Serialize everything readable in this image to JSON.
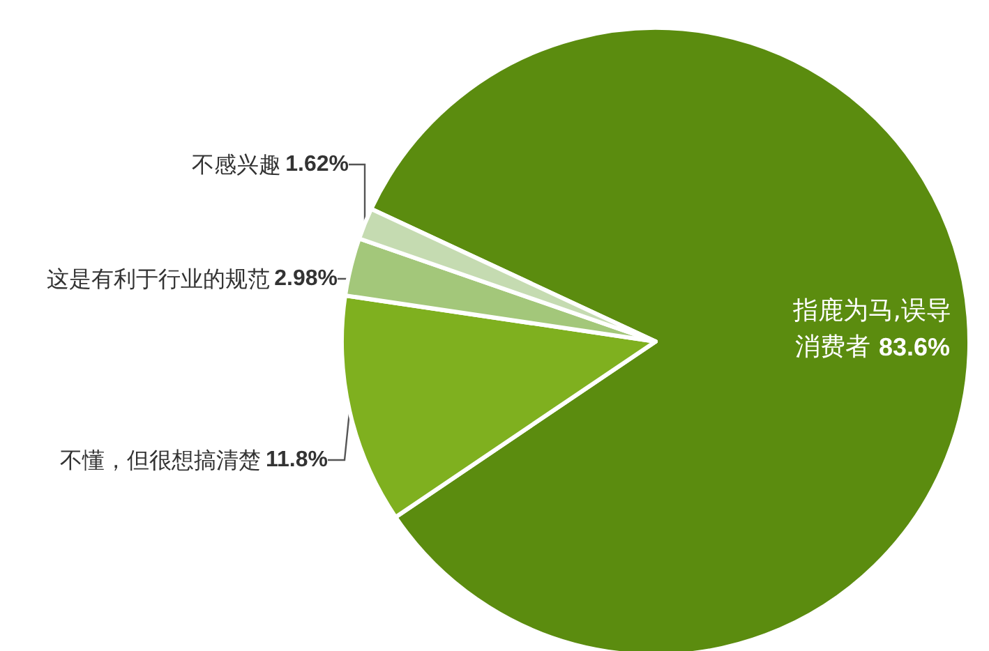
{
  "chart_data": {
    "type": "pie",
    "categories": [
      "指鹿为马,误导消费者",
      "不懂，但很想搞清楚",
      "这是有利于行业的规范",
      "不感兴趣"
    ],
    "values": [
      83.6,
      11.8,
      2.98,
      1.62
    ],
    "value_labels": [
      "83.6%",
      "11.8%",
      "2.98%",
      "1.62%"
    ],
    "colors": [
      "#5b8c0f",
      "#7fb01f",
      "#a3c77a",
      "#c5dbb1"
    ],
    "legend": false
  }
}
